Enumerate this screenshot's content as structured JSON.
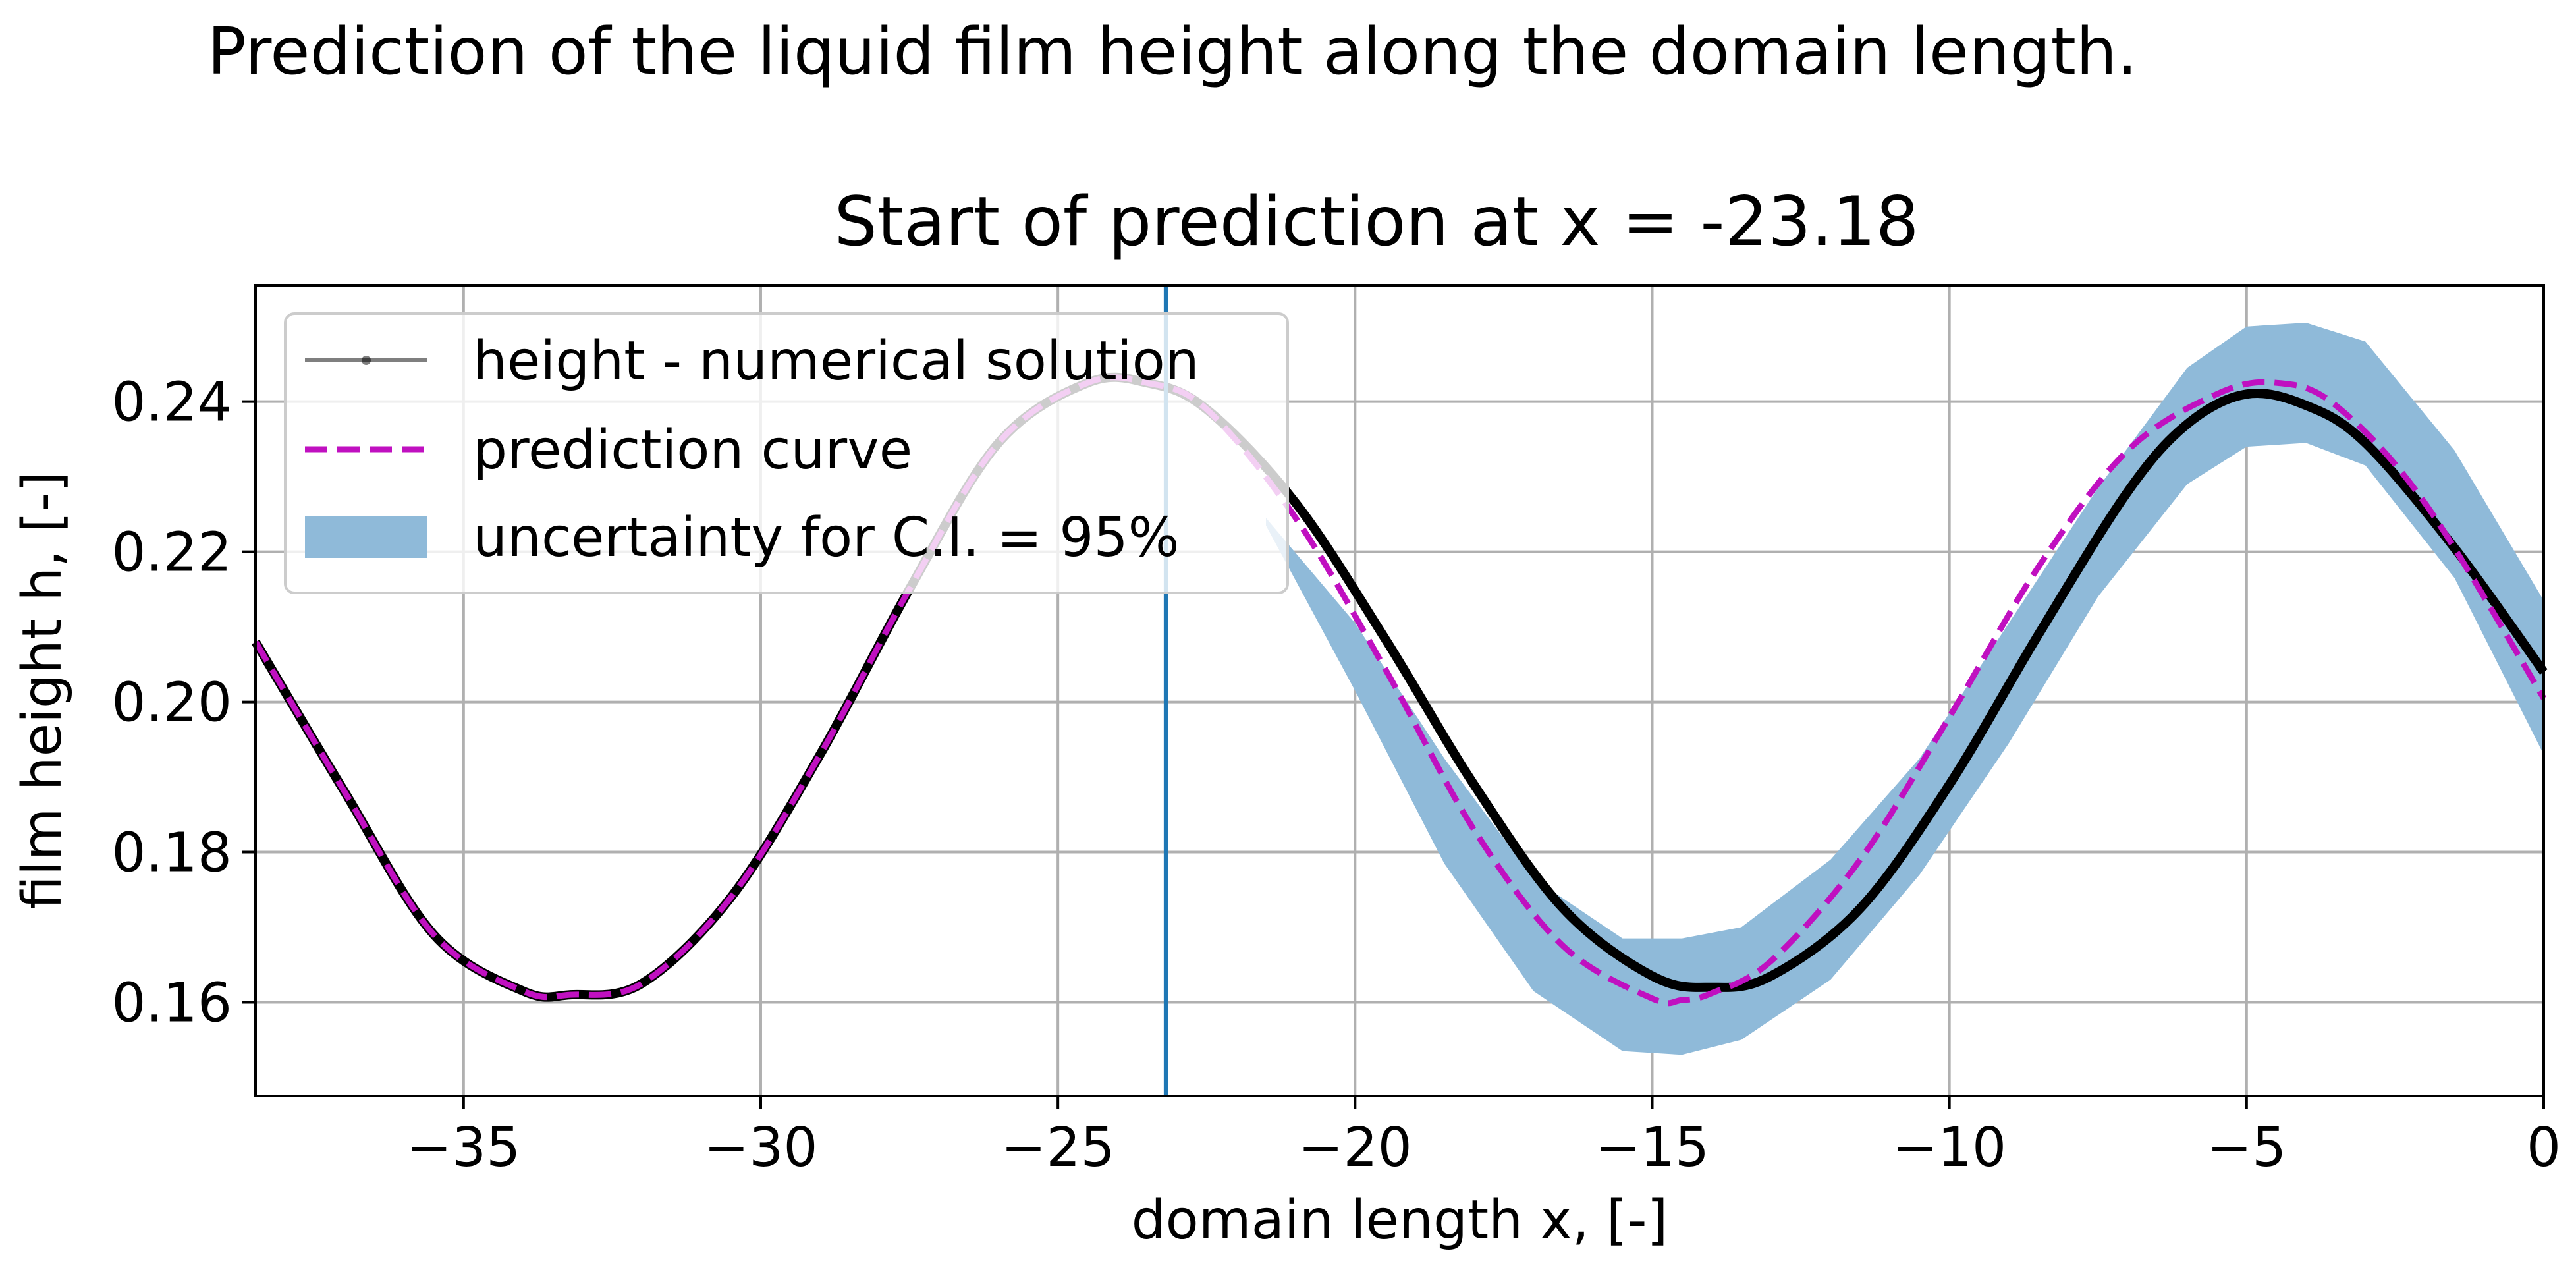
{
  "chart_data": {
    "type": "line",
    "suptitle": "Prediction of the liquid film height along the domain length.",
    "title": "Start of prediction at x = -23.18",
    "xlabel": "domain length x, [-]",
    "ylabel": "film height h, [-]",
    "xlim": [
      -38.5,
      0
    ],
    "ylim": [
      0.1475,
      0.2555
    ],
    "xticks": [
      -35,
      -30,
      -25,
      -20,
      -15,
      -10,
      -5,
      0
    ],
    "xtick_labels": [
      "−35",
      "−30",
      "−25",
      "−20",
      "−15",
      "−10",
      "−5",
      "0"
    ],
    "yticks": [
      0.16,
      0.18,
      0.2,
      0.22,
      0.24
    ],
    "ytick_labels": [
      "0.16",
      "0.18",
      "0.20",
      "0.22",
      "0.24"
    ],
    "grid": true,
    "legend_position": "top-left",
    "vline": {
      "x": -23.18,
      "color": "#1f77b4"
    },
    "series": [
      {
        "name": "height - numerical solution",
        "style": "solid",
        "color": "#000000",
        "x": [
          -38.5,
          -37,
          -35.5,
          -34,
          -33.2,
          -32,
          -30.5,
          -29,
          -27.5,
          -26,
          -24.5,
          -23.5,
          -22.5,
          -21,
          -19.5,
          -18,
          -16.5,
          -15,
          -14,
          -13,
          -11.5,
          -10,
          -8.5,
          -7,
          -6,
          -5,
          -4,
          -3,
          -1.5,
          0
        ],
        "y": [
          0.208,
          0.188,
          0.169,
          0.1615,
          0.161,
          0.1625,
          0.174,
          0.193,
          0.215,
          0.2345,
          0.2425,
          0.2425,
          0.239,
          0.2265,
          0.2085,
          0.189,
          0.1725,
          0.1635,
          0.162,
          0.1635,
          0.1725,
          0.189,
          0.209,
          0.228,
          0.237,
          0.241,
          0.2395,
          0.2345,
          0.2205,
          0.204
        ]
      },
      {
        "name": "prediction curve",
        "style": "dashed",
        "color": "#c010c0",
        "x": [
          -38.5,
          -37,
          -35.5,
          -34,
          -33.2,
          -32,
          -30.5,
          -29,
          -27.5,
          -26,
          -24.5,
          -23.5,
          -22.5,
          -21,
          -19.5,
          -18,
          -16.5,
          -15,
          -14.5,
          -14,
          -13,
          -11.5,
          -10,
          -8.5,
          -7,
          -5.5,
          -4.5,
          -3.5,
          -2,
          0
        ],
        "y": [
          0.208,
          0.188,
          0.169,
          0.1615,
          0.161,
          0.1625,
          0.174,
          0.193,
          0.215,
          0.2345,
          0.2425,
          0.2425,
          0.239,
          0.2245,
          0.2045,
          0.183,
          0.1675,
          0.1605,
          0.1603,
          0.1612,
          0.1655,
          0.179,
          0.198,
          0.218,
          0.2335,
          0.241,
          0.2425,
          0.2395,
          0.2265,
          0.2005
        ]
      }
    ],
    "uncertainty": {
      "name": "uncertainty for C.I. = 95%",
      "color": "#8fbad9",
      "x": [
        -21.5,
        -20,
        -18.5,
        -17,
        -15.5,
        -14.5,
        -13.5,
        -12,
        -10.5,
        -9,
        -7.5,
        -6,
        -5,
        -4,
        -3,
        -1.5,
        0
      ],
      "lower": [
        0.2235,
        0.2015,
        0.1785,
        0.1615,
        0.1535,
        0.153,
        0.155,
        0.163,
        0.177,
        0.1945,
        0.214,
        0.229,
        0.234,
        0.2345,
        0.2315,
        0.2165,
        0.193
      ],
      "upper": [
        0.2245,
        0.2105,
        0.1925,
        0.1765,
        0.1685,
        0.1685,
        0.17,
        0.179,
        0.1925,
        0.2105,
        0.2285,
        0.2445,
        0.25,
        0.2505,
        0.248,
        0.2335,
        0.2135
      ]
    }
  }
}
